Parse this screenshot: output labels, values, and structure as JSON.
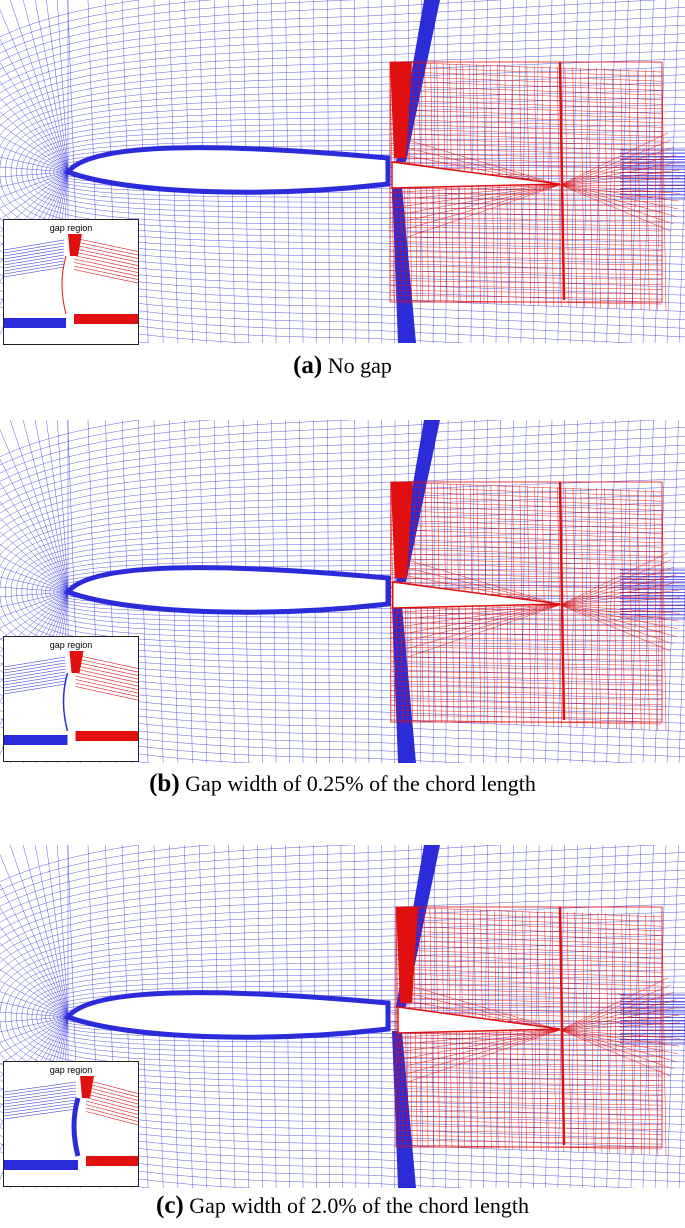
{
  "panels": [
    {
      "tag": "(a)",
      "caption": "No gap",
      "inset_title": "gap region",
      "gap": 0
    },
    {
      "tag": "(b)",
      "caption": "Gap width of 0.25% of the chord length",
      "inset_title": "gap region",
      "gap": 0.25
    },
    {
      "tag": "(c)",
      "caption": "Gap width of 2.0% of the chord length",
      "inset_title": "gap region",
      "gap": 2.0
    }
  ],
  "colors": {
    "main_mesh": "#2b2bd9",
    "flap_mesh": "#e01010",
    "airfoil_fill": "#ffffff",
    "frame": "#222222"
  }
}
